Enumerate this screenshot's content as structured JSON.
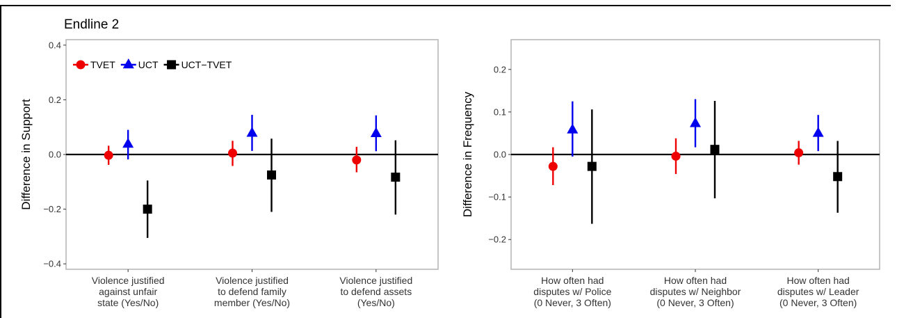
{
  "section_title": "Endline 2",
  "colors": {
    "TVET": "#ee0000",
    "UCT": "#0000ee",
    "UCT-TVET": "#000000"
  },
  "legend": {
    "position": "top-left",
    "items": [
      {
        "label": "TVET",
        "marker": "circle"
      },
      {
        "label": "UCT",
        "marker": "triangle"
      },
      {
        "label": "UCT−TVET",
        "marker": "square"
      }
    ]
  },
  "chart_data": [
    {
      "type": "scatter",
      "subtype": "point-range",
      "ylabel": "Difference in Support",
      "xlabel": "",
      "ylim": [
        -0.42,
        0.42
      ],
      "yticks": [
        "-0.4",
        "-0.2",
        "0.0",
        "0.2",
        "0.4"
      ],
      "grid": false,
      "legend": "top-left",
      "categories": [
        [
          "Violence justified",
          "against unfair",
          "state (Yes/No)"
        ],
        [
          "Violence justified",
          "to defend family",
          "member (Yes/No)"
        ],
        [
          "Violence justified",
          "to defend assets",
          "(Yes/No)"
        ]
      ],
      "series": [
        {
          "name": "TVET",
          "values": [
            -0.003,
            0.005,
            -0.02
          ],
          "lower": [
            -0.038,
            -0.042,
            -0.065
          ],
          "upper": [
            0.032,
            0.05,
            0.028
          ]
        },
        {
          "name": "UCT",
          "values": [
            0.038,
            0.078,
            0.077
          ],
          "lower": [
            -0.018,
            0.013,
            0.012
          ],
          "upper": [
            0.09,
            0.145,
            0.143
          ]
        },
        {
          "name": "UCT−TVET",
          "values": [
            -0.2,
            -0.075,
            -0.083
          ],
          "lower": [
            -0.305,
            -0.21,
            -0.22
          ],
          "upper": [
            -0.095,
            0.058,
            0.052
          ]
        }
      ]
    },
    {
      "type": "scatter",
      "subtype": "point-range",
      "ylabel": "Difference in Frequency",
      "xlabel": "",
      "ylim": [
        -0.27,
        0.27
      ],
      "yticks": [
        "-0.2",
        "-0.1",
        "0.0",
        "0.1",
        "0.2"
      ],
      "grid": false,
      "categories": [
        [
          "How often had",
          "disputes w/ Police",
          "(0 Never, 3 Often)"
        ],
        [
          "How often had",
          "disputes w/ Neighbor",
          "(0 Never, 3 Often)"
        ],
        [
          "How often had",
          "disputes w/ Leader",
          "(0 Never, 3 Often)"
        ]
      ],
      "series": [
        {
          "name": "TVET",
          "values": [
            -0.028,
            -0.004,
            0.004
          ],
          "lower": [
            -0.072,
            -0.046,
            -0.024
          ],
          "upper": [
            0.017,
            0.038,
            0.032
          ]
        },
        {
          "name": "UCT",
          "values": [
            0.058,
            0.073,
            0.05
          ],
          "lower": [
            -0.005,
            0.017,
            0.008
          ],
          "upper": [
            0.125,
            0.13,
            0.093
          ]
        },
        {
          "name": "UCT−TVET",
          "values": [
            -0.028,
            0.012,
            -0.052
          ],
          "lower": [
            -0.163,
            -0.103,
            -0.137
          ],
          "upper": [
            0.106,
            0.126,
            0.032
          ]
        }
      ]
    }
  ]
}
